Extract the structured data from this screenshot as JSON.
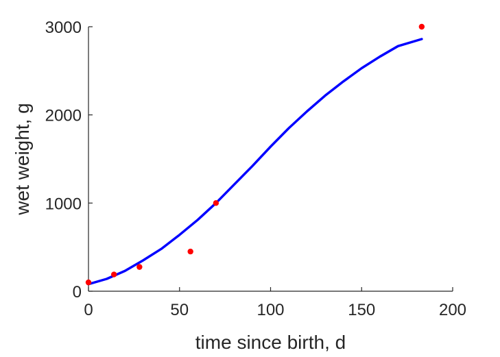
{
  "chart_data": {
    "type": "scatter",
    "title": "",
    "xlabel": "time since birth, d",
    "ylabel": "wet weight, g",
    "xlim": [
      0,
      200
    ],
    "ylim": [
      0,
      3000
    ],
    "x_ticks": [
      0,
      50,
      100,
      150,
      200
    ],
    "y_ticks": [
      0,
      1000,
      2000,
      3000
    ],
    "x_tick_labels": [
      "0",
      "50",
      "100",
      "150",
      "200"
    ],
    "y_tick_labels": [
      "0",
      "1000",
      "2000",
      "3000"
    ],
    "grid": false,
    "legend": "none",
    "series": [
      {
        "kind": "scatter",
        "color": "#ff0000",
        "x": [
          0,
          14,
          28,
          56,
          70,
          183
        ],
        "y": [
          100,
          190,
          275,
          450,
          1000,
          3000
        ]
      },
      {
        "kind": "line",
        "color": "#0000ff",
        "x": [
          0,
          10,
          20,
          30,
          40,
          50,
          60,
          70,
          80,
          90,
          100,
          110,
          120,
          130,
          140,
          150,
          160,
          170,
          183
        ],
        "y": [
          80,
          140,
          230,
          350,
          480,
          640,
          810,
          1000,
          1210,
          1420,
          1640,
          1850,
          2040,
          2220,
          2380,
          2530,
          2660,
          2780,
          2860
        ]
      }
    ]
  }
}
